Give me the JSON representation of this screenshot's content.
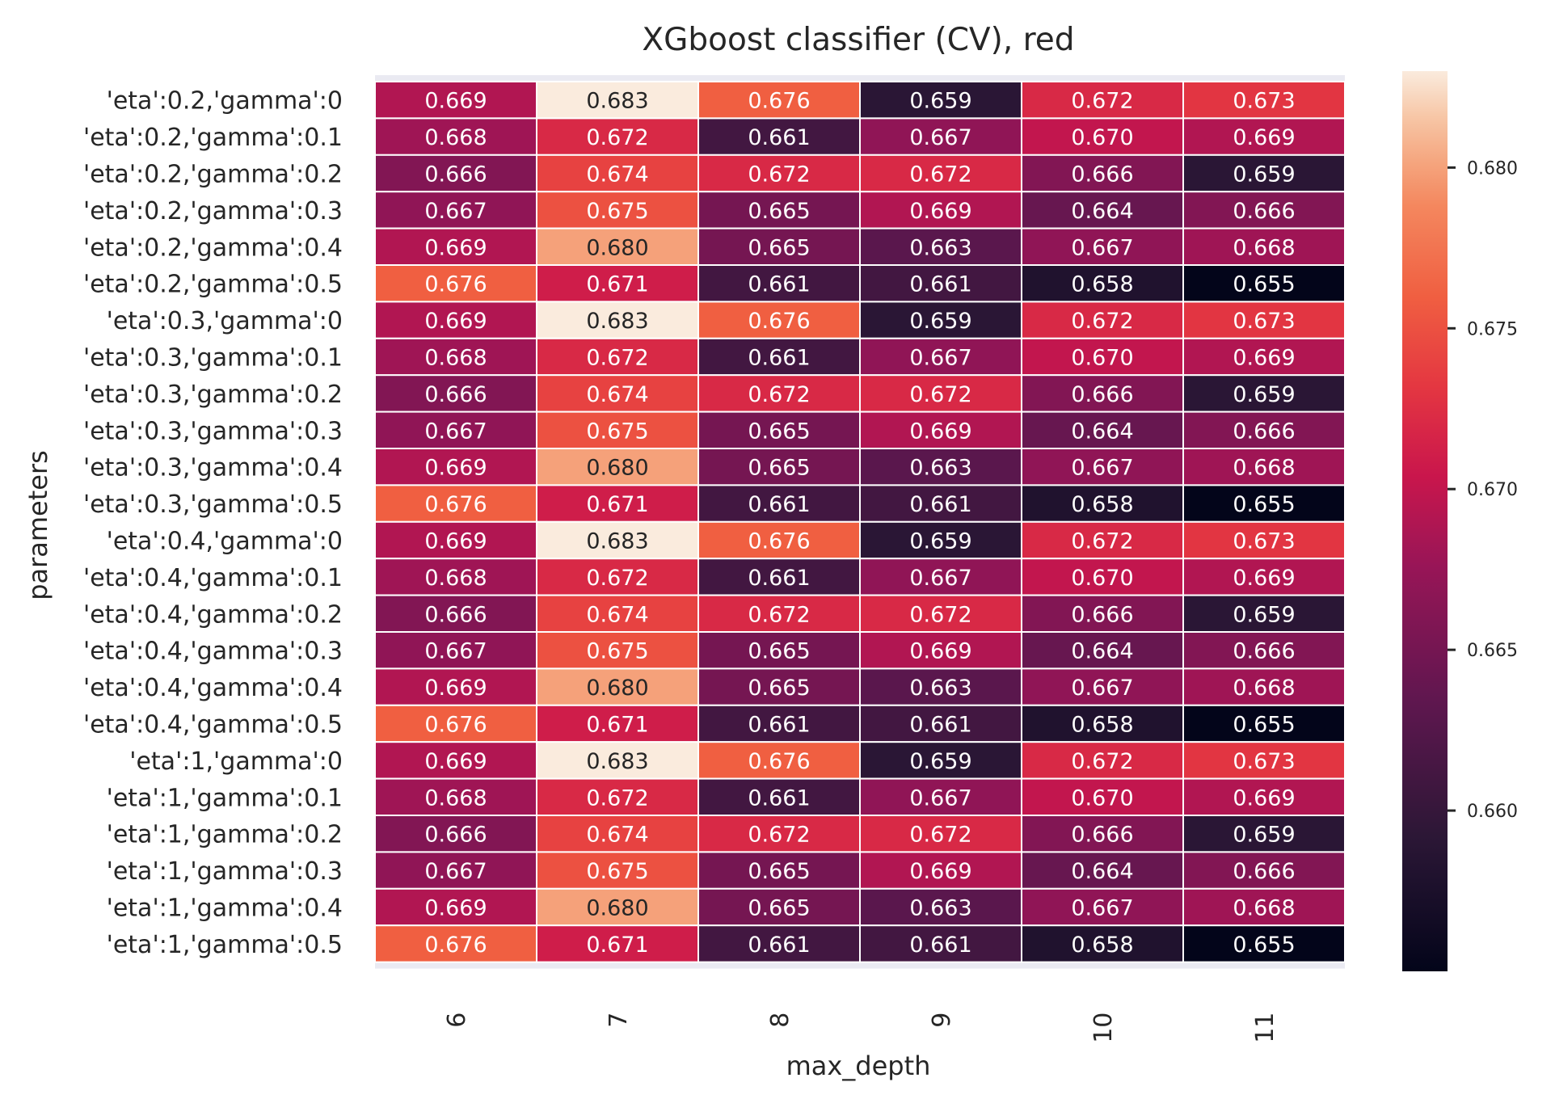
{
  "chart_data": {
    "type": "heatmap",
    "title": "XGboost classifier (CV), red",
    "xlabel": "max_depth",
    "ylabel": "parameters",
    "x": [
      "6",
      "7",
      "8",
      "9",
      "10",
      "11"
    ],
    "y": [
      "'eta':0.2,'gamma':0",
      "'eta':0.2,'gamma':0.1",
      "'eta':0.2,'gamma':0.2",
      "'eta':0.2,'gamma':0.3",
      "'eta':0.2,'gamma':0.4",
      "'eta':0.2,'gamma':0.5",
      "'eta':0.3,'gamma':0",
      "'eta':0.3,'gamma':0.1",
      "'eta':0.3,'gamma':0.2",
      "'eta':0.3,'gamma':0.3",
      "'eta':0.3,'gamma':0.4",
      "'eta':0.3,'gamma':0.5",
      "'eta':0.4,'gamma':0",
      "'eta':0.4,'gamma':0.1",
      "'eta':0.4,'gamma':0.2",
      "'eta':0.4,'gamma':0.3",
      "'eta':0.4,'gamma':0.4",
      "'eta':0.4,'gamma':0.5",
      "'eta':1,'gamma':0",
      "'eta':1,'gamma':0.1",
      "'eta':1,'gamma':0.2",
      "'eta':1,'gamma':0.3",
      "'eta':1,'gamma':0.4",
      "'eta':1,'gamma':0.5"
    ],
    "values": [
      [
        0.669,
        0.683,
        0.676,
        0.659,
        0.672,
        0.673
      ],
      [
        0.668,
        0.672,
        0.661,
        0.667,
        0.67,
        0.669
      ],
      [
        0.666,
        0.674,
        0.672,
        0.672,
        0.666,
        0.659
      ],
      [
        0.667,
        0.675,
        0.665,
        0.669,
        0.664,
        0.666
      ],
      [
        0.669,
        0.68,
        0.665,
        0.663,
        0.667,
        0.668
      ],
      [
        0.676,
        0.671,
        0.661,
        0.661,
        0.658,
        0.655
      ],
      [
        0.669,
        0.683,
        0.676,
        0.659,
        0.672,
        0.673
      ],
      [
        0.668,
        0.672,
        0.661,
        0.667,
        0.67,
        0.669
      ],
      [
        0.666,
        0.674,
        0.672,
        0.672,
        0.666,
        0.659
      ],
      [
        0.667,
        0.675,
        0.665,
        0.669,
        0.664,
        0.666
      ],
      [
        0.669,
        0.68,
        0.665,
        0.663,
        0.667,
        0.668
      ],
      [
        0.676,
        0.671,
        0.661,
        0.661,
        0.658,
        0.655
      ],
      [
        0.669,
        0.683,
        0.676,
        0.659,
        0.672,
        0.673
      ],
      [
        0.668,
        0.672,
        0.661,
        0.667,
        0.67,
        0.669
      ],
      [
        0.666,
        0.674,
        0.672,
        0.672,
        0.666,
        0.659
      ],
      [
        0.667,
        0.675,
        0.665,
        0.669,
        0.664,
        0.666
      ],
      [
        0.669,
        0.68,
        0.665,
        0.663,
        0.667,
        0.668
      ],
      [
        0.676,
        0.671,
        0.661,
        0.661,
        0.658,
        0.655
      ],
      [
        0.669,
        0.683,
        0.676,
        0.659,
        0.672,
        0.673
      ],
      [
        0.668,
        0.672,
        0.661,
        0.667,
        0.67,
        0.669
      ],
      [
        0.666,
        0.674,
        0.672,
        0.672,
        0.666,
        0.659
      ],
      [
        0.667,
        0.675,
        0.665,
        0.669,
        0.664,
        0.666
      ],
      [
        0.669,
        0.68,
        0.665,
        0.663,
        0.667,
        0.668
      ],
      [
        0.676,
        0.671,
        0.661,
        0.661,
        0.658,
        0.655
      ]
    ],
    "vmin": 0.655,
    "vmax": 0.683,
    "colormap": "rocket",
    "colorbar_ticks": [
      0.66,
      0.665,
      0.67,
      0.675,
      0.68
    ],
    "colorbar_tick_labels": [
      "0.660",
      "0.665",
      "0.670",
      "0.675",
      "0.680"
    ],
    "annotations_format": "3 decimals"
  }
}
